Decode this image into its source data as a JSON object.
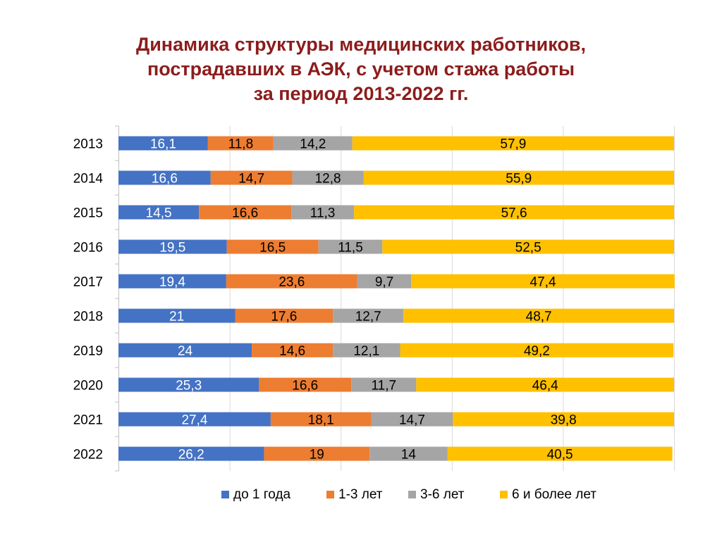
{
  "chart_data": {
    "type": "bar",
    "orientation": "horizontal",
    "stacked": "percent",
    "title": [
      "Динамика структуры медицинских работников,",
      "пострадавших в АЭК, с учетом стажа работы",
      "за период 2013-2022 гг."
    ],
    "categories": [
      "2013",
      "2014",
      "2015",
      "2016",
      "2017",
      "2018",
      "2019",
      "2020",
      "2021",
      "2022"
    ],
    "series": [
      {
        "name": "до 1 года",
        "color": "#4472c4",
        "label_color": "#ffffff",
        "values": [
          16.1,
          16.6,
          14.5,
          19.5,
          19.4,
          21,
          24,
          25.3,
          27.4,
          26.2
        ]
      },
      {
        "name": "1-3 лет",
        "color": "#ed7d31",
        "label_color": "#000000",
        "values": [
          11.8,
          14.7,
          16.6,
          16.5,
          23.6,
          17.6,
          14.6,
          16.6,
          18.1,
          19
        ]
      },
      {
        "name": "3-6 лет",
        "color": "#a5a5a5",
        "label_color": "#000000",
        "values": [
          14.2,
          12.8,
          11.3,
          11.5,
          9.7,
          12.7,
          12.1,
          11.7,
          14.7,
          14
        ]
      },
      {
        "name": "6 и более лет",
        "color": "#ffc000",
        "label_color": "#000000",
        "values": [
          57.9,
          55.9,
          57.6,
          52.5,
          47.4,
          48.7,
          49.2,
          46.4,
          39.8,
          40.5
        ]
      }
    ],
    "xlim": [
      0,
      100
    ],
    "x_gridlines": [
      0,
      20,
      40,
      60,
      80,
      100
    ],
    "x_tick_labels_shown": false,
    "grid": true,
    "legend": "bottom"
  }
}
